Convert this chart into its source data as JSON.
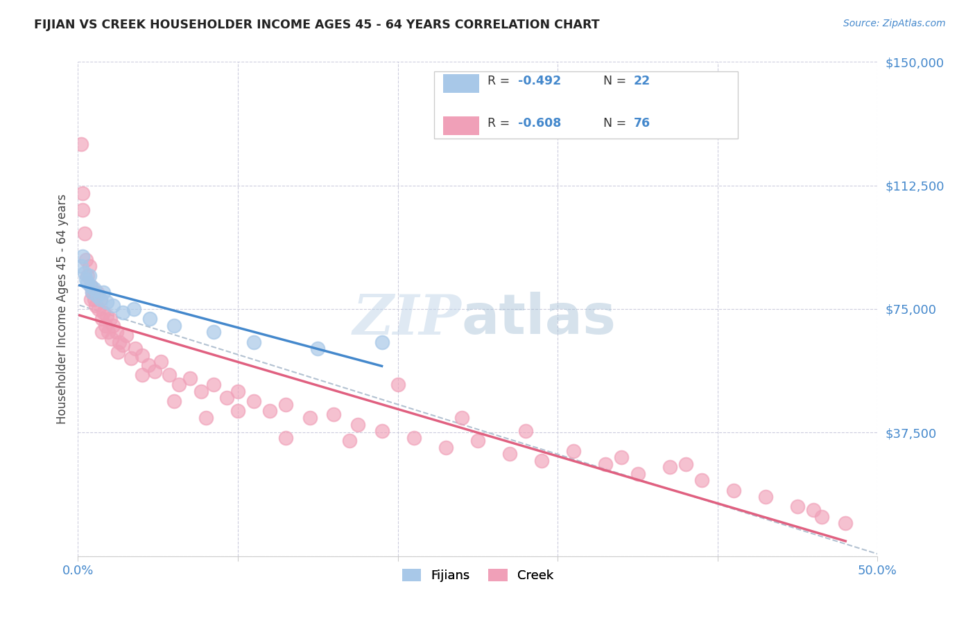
{
  "title": "FIJIAN VS CREEK HOUSEHOLDER INCOME AGES 45 - 64 YEARS CORRELATION CHART",
  "source_text": "Source: ZipAtlas.com",
  "ylabel": "Householder Income Ages 45 - 64 years",
  "xlim": [
    0.0,
    0.5
  ],
  "ylim": [
    0,
    150000
  ],
  "yticks": [
    0,
    37500,
    75000,
    112500,
    150000
  ],
  "ytick_labels": [
    "",
    "$37,500",
    "$75,000",
    "$112,500",
    "$150,000"
  ],
  "fijians_color": "#a8c8e8",
  "creek_color": "#f0a0b8",
  "fijian_line_color": "#4488cc",
  "creek_line_color": "#e06080",
  "dashed_line_color": "#aabbcc",
  "watermark_zip": "ZIP",
  "watermark_atlas": "atlas",
  "fijians_x": [
    0.002,
    0.003,
    0.004,
    0.005,
    0.006,
    0.007,
    0.008,
    0.009,
    0.01,
    0.012,
    0.014,
    0.016,
    0.018,
    0.022,
    0.028,
    0.035,
    0.045,
    0.06,
    0.085,
    0.11,
    0.15,
    0.19
  ],
  "fijians_y": [
    88000,
    91000,
    86000,
    84000,
    83000,
    85000,
    82000,
    80000,
    81000,
    79000,
    78000,
    80000,
    77000,
    76000,
    74000,
    75000,
    72000,
    70000,
    68000,
    65000,
    63000,
    65000
  ],
  "creek_x": [
    0.002,
    0.003,
    0.004,
    0.005,
    0.006,
    0.007,
    0.008,
    0.009,
    0.01,
    0.011,
    0.012,
    0.013,
    0.014,
    0.015,
    0.016,
    0.017,
    0.018,
    0.019,
    0.02,
    0.021,
    0.022,
    0.024,
    0.026,
    0.028,
    0.03,
    0.033,
    0.036,
    0.04,
    0.044,
    0.048,
    0.052,
    0.057,
    0.063,
    0.07,
    0.077,
    0.085,
    0.093,
    0.1,
    0.11,
    0.12,
    0.13,
    0.145,
    0.16,
    0.175,
    0.19,
    0.21,
    0.23,
    0.25,
    0.27,
    0.29,
    0.31,
    0.33,
    0.35,
    0.37,
    0.39,
    0.41,
    0.43,
    0.45,
    0.465,
    0.48,
    0.003,
    0.008,
    0.015,
    0.025,
    0.04,
    0.06,
    0.08,
    0.13,
    0.2,
    0.28,
    0.38,
    0.46,
    0.1,
    0.17,
    0.24,
    0.34
  ],
  "creek_y": [
    125000,
    105000,
    98000,
    90000,
    85000,
    88000,
    82000,
    80000,
    78000,
    76000,
    80000,
    75000,
    78000,
    72000,
    74000,
    70000,
    73000,
    68000,
    72000,
    66000,
    70000,
    68000,
    65000,
    64000,
    67000,
    60000,
    63000,
    61000,
    58000,
    56000,
    59000,
    55000,
    52000,
    54000,
    50000,
    52000,
    48000,
    50000,
    47000,
    44000,
    46000,
    42000,
    43000,
    40000,
    38000,
    36000,
    33000,
    35000,
    31000,
    29000,
    32000,
    28000,
    25000,
    27000,
    23000,
    20000,
    18000,
    15000,
    12000,
    10000,
    110000,
    78000,
    68000,
    62000,
    55000,
    47000,
    42000,
    36000,
    52000,
    38000,
    28000,
    14000,
    44000,
    35000,
    42000,
    30000
  ]
}
